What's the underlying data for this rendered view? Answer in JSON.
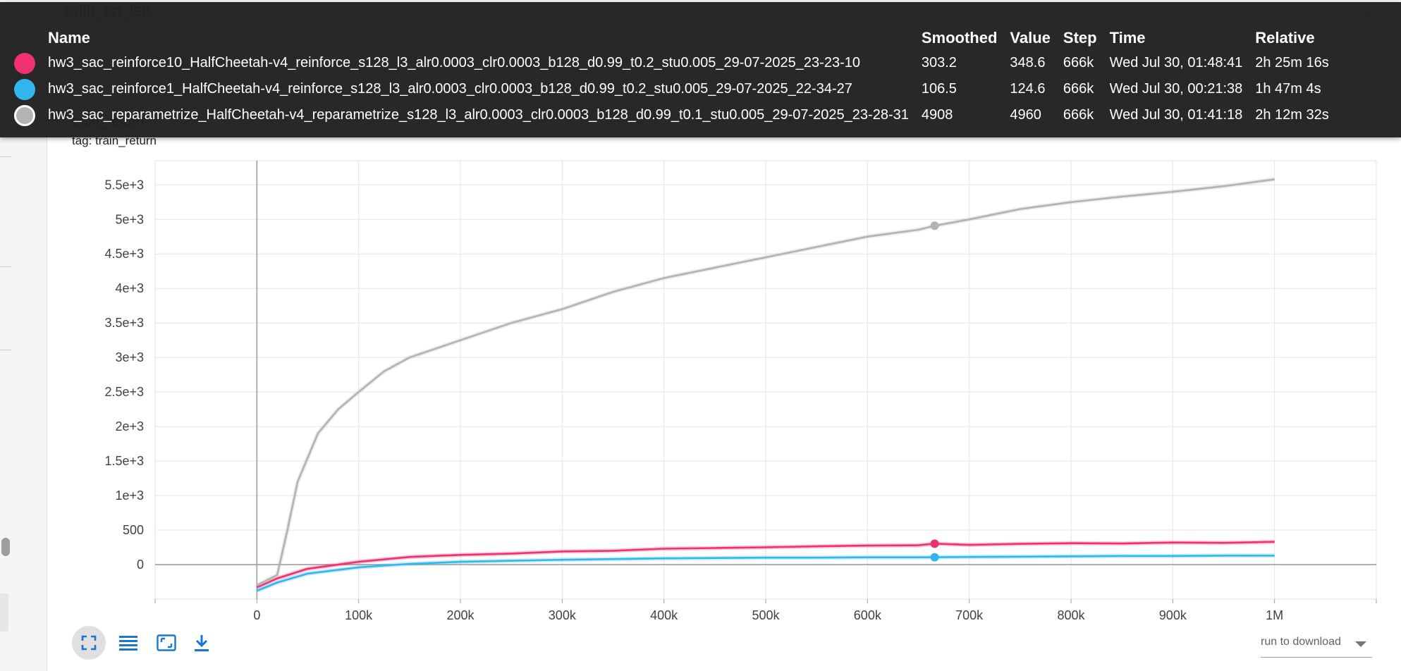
{
  "header": {
    "title": "train_ep_len",
    "chevron_icon": "chevron-down-icon"
  },
  "chart": {
    "title": "train_return",
    "tag": "tag: train_return"
  },
  "tooltip": {
    "columns": [
      "Name",
      "Smoothed",
      "Value",
      "Step",
      "Time",
      "Relative"
    ],
    "rows": [
      {
        "color": "#f0306f",
        "hollow": false,
        "name": "hw3_sac_reinforce10_HalfCheetah-v4_reinforce_s128_l3_alr0.0003_clr0.0003_b128_d0.99_t0.2_stu0.005_29-07-2025_23-23-10",
        "smoothed": "303.2",
        "value": "348.6",
        "step": "666k",
        "time": "Wed Jul 30, 01:48:41",
        "relative": "2h 25m 16s"
      },
      {
        "color": "#31b7ee",
        "hollow": false,
        "name": "hw3_sac_reinforce1_HalfCheetah-v4_reinforce_s128_l3_alr0.0003_clr0.0003_b128_d0.99_t0.2_stu0.005_29-07-2025_22-34-27",
        "smoothed": "106.5",
        "value": "124.6",
        "step": "666k",
        "time": "Wed Jul 30, 00:21:38",
        "relative": "1h 47m 4s"
      },
      {
        "color": "#b3b3b3",
        "hollow": true,
        "name": "hw3_sac_reparametrize_HalfCheetah-v4_reparametrize_s128_l3_alr0.0003_clr0.0003_b128_d0.99_t0.1_stu0.005_29-07-2025_23-28-31",
        "smoothed": "4908",
        "value": "4960",
        "step": "666k",
        "time": "Wed Jul 30, 01:41:18",
        "relative": "2h 12m 32s"
      }
    ]
  },
  "chart_data": {
    "type": "line",
    "title": "train_return",
    "xlabel": "",
    "ylabel": "",
    "xlim": [
      -100000,
      1100000
    ],
    "ylim": [
      -500,
      5850
    ],
    "x_ticks": [
      0,
      100000,
      200000,
      300000,
      400000,
      500000,
      600000,
      700000,
      800000,
      900000,
      1000000
    ],
    "x_tick_labels": [
      "0",
      "100k",
      "200k",
      "300k",
      "400k",
      "500k",
      "600k",
      "700k",
      "800k",
      "900k",
      "1M"
    ],
    "y_ticks": [
      0,
      500,
      1000,
      1500,
      2000,
      2500,
      3000,
      3500,
      4000,
      4500,
      5000,
      5500
    ],
    "y_tick_labels": [
      "0",
      "500",
      "1e+3",
      "1.5e+3",
      "2e+3",
      "2.5e+3",
      "3e+3",
      "3.5e+3",
      "4e+3",
      "4.5e+3",
      "5e+3",
      "5.5e+3"
    ],
    "grid": true,
    "hover_step": 666000,
    "series": [
      {
        "name": "hw3_sac_reinforce10_HalfCheetah-v4_reinforce_s128_l3_alr0.0003_clr0.0003_b128_d0.99_t0.2_stu0.005_29-07-2025_23-23-10",
        "color": "#f0306f",
        "x": [
          0,
          20000,
          50000,
          100000,
          150000,
          200000,
          250000,
          300000,
          350000,
          400000,
          450000,
          500000,
          550000,
          600000,
          650000,
          666000,
          700000,
          750000,
          800000,
          850000,
          900000,
          950000,
          1000000
        ],
        "y": [
          -330,
          -200,
          -60,
          40,
          110,
          140,
          160,
          190,
          200,
          230,
          240,
          250,
          265,
          275,
          280,
          303,
          285,
          300,
          310,
          305,
          320,
          315,
          330
        ]
      },
      {
        "name": "hw3_sac_reinforce1_HalfCheetah-v4_reinforce_s128_l3_alr0.0003_clr0.0003_b128_d0.99_t0.2_stu0.005_29-07-2025_22-34-27",
        "color": "#31b7ee",
        "x": [
          0,
          20000,
          50000,
          100000,
          150000,
          200000,
          250000,
          300000,
          350000,
          400000,
          450000,
          500000,
          550000,
          600000,
          650000,
          666000,
          700000,
          750000,
          800000,
          850000,
          900000,
          950000,
          1000000
        ],
        "y": [
          -380,
          -260,
          -130,
          -40,
          10,
          40,
          55,
          70,
          80,
          90,
          95,
          100,
          100,
          105,
          105,
          106,
          110,
          115,
          120,
          125,
          125,
          130,
          130
        ]
      },
      {
        "name": "hw3_sac_reparametrize_HalfCheetah-v4_reparametrize_s128_l3_alr0.0003_clr0.0003_b128_d0.99_t0.1_stu0.005_29-07-2025_23-28-31",
        "color": "#b3b3b3",
        "x": [
          0,
          20000,
          30000,
          40000,
          60000,
          80000,
          100000,
          125000,
          150000,
          200000,
          250000,
          300000,
          350000,
          400000,
          450000,
          500000,
          550000,
          600000,
          650000,
          666000,
          700000,
          750000,
          800000,
          850000,
          900000,
          950000,
          1000000
        ],
        "y": [
          -300,
          -150,
          500,
          1200,
          1900,
          2250,
          2500,
          2800,
          3000,
          3250,
          3500,
          3700,
          3950,
          4150,
          4300,
          4450,
          4600,
          4750,
          4850,
          4908,
          5000,
          5150,
          5250,
          5330,
          5400,
          5480,
          5580
        ]
      }
    ]
  }
}
